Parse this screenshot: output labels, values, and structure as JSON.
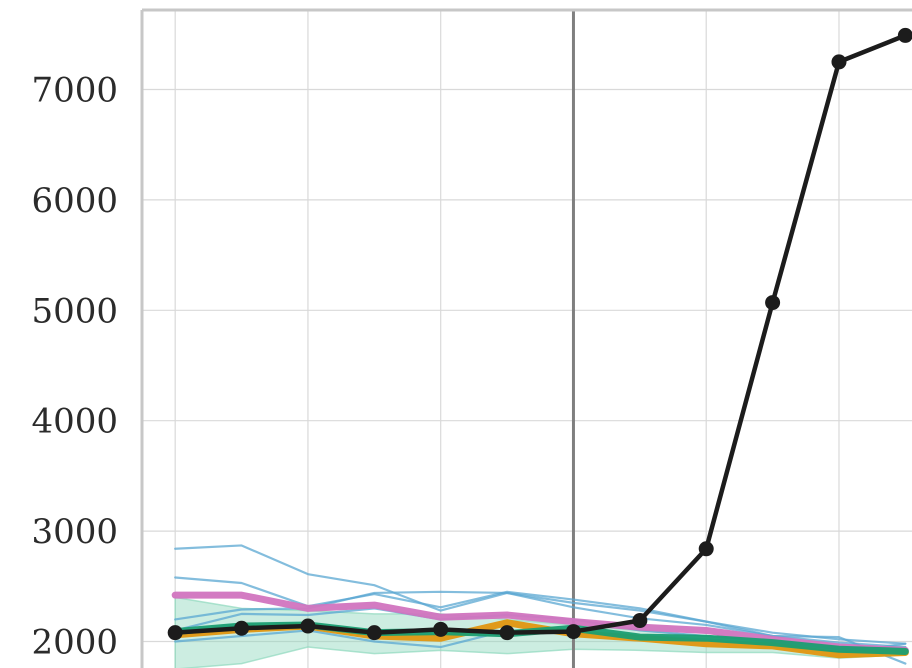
{
  "chart_data": {
    "type": "line",
    "title": "",
    "xlabel": "",
    "ylabel": "",
    "x": [
      0,
      1,
      2,
      3,
      4,
      5,
      6,
      7,
      8,
      9,
      10,
      11
    ],
    "xlim": [
      -0.5,
      11.1
    ],
    "ylim": [
      1760,
      7720
    ],
    "y_ticks": [
      "2000",
      "3000",
      "4000",
      "5000",
      "6000",
      "7000"
    ],
    "x_grid": [
      0,
      2,
      4,
      6,
      8,
      10
    ],
    "grid": true,
    "vertical_marker_x": 6,
    "band": {
      "lower": [
        1750,
        1800,
        1950,
        1890,
        1920,
        1890,
        1930,
        1920,
        1900,
        1900,
        1850,
        1880
      ],
      "upper": [
        2400,
        2300,
        2280,
        2250,
        2250,
        2200,
        2150,
        2100,
        2050,
        2000,
        1950,
        1950
      ],
      "color": "#8fd8bd"
    },
    "series": [
      {
        "values": [
          2840,
          2870,
          2610,
          2510,
          2280,
          2440,
          2350,
          2280,
          2180,
          2050,
          2040,
          1800
        ],
        "color": "#5aa7d2",
        "role": "thin"
      },
      {
        "values": [
          2580,
          2530,
          2320,
          2430,
          2310,
          2450,
          2380,
          2300,
          2180,
          2080,
          2020,
          1980
        ],
        "color": "#5aa7d2",
        "role": "thin"
      },
      {
        "values": [
          2200,
          2290,
          2300,
          2440,
          2450,
          2440,
          2310,
          2210,
          2150,
          2050,
          1990,
          1950
        ],
        "color": "#5aa7d2",
        "role": "thin"
      },
      {
        "values": [
          2100,
          2250,
          2240,
          2300,
          2200,
          2240,
          2200,
          2100,
          2050,
          2000,
          1930,
          1890
        ],
        "color": "#5aa7d2",
        "role": "thin"
      },
      {
        "values": [
          2000,
          2050,
          2100,
          2000,
          1950,
          2100,
          2080,
          2050,
          2020,
          1980,
          1900,
          1980
        ],
        "color": "#5aa7d2",
        "role": "thin"
      },
      {
        "values": [
          2420,
          2420,
          2300,
          2330,
          2220,
          2240,
          2180,
          2130,
          2100,
          2020,
          1950,
          1920
        ],
        "color": "#d174bf",
        "role": "thick"
      },
      {
        "values": [
          2060,
          2110,
          2140,
          2050,
          2030,
          2170,
          2070,
          2030,
          1980,
          1960,
          1880,
          1900
        ],
        "color": "#e0960f",
        "role": "thick"
      },
      {
        "values": [
          2090,
          2140,
          2150,
          2080,
          2090,
          2070,
          2120,
          2040,
          2030,
          1990,
          1930,
          1910
        ],
        "color": "#1a9e72",
        "role": "thick"
      },
      {
        "values": [
          2080,
          2120,
          2140,
          2080,
          2110,
          2080,
          2090,
          2190,
          2840,
          5070,
          7250,
          7490
        ],
        "color": "#1c1c1c",
        "role": "markers"
      }
    ]
  }
}
